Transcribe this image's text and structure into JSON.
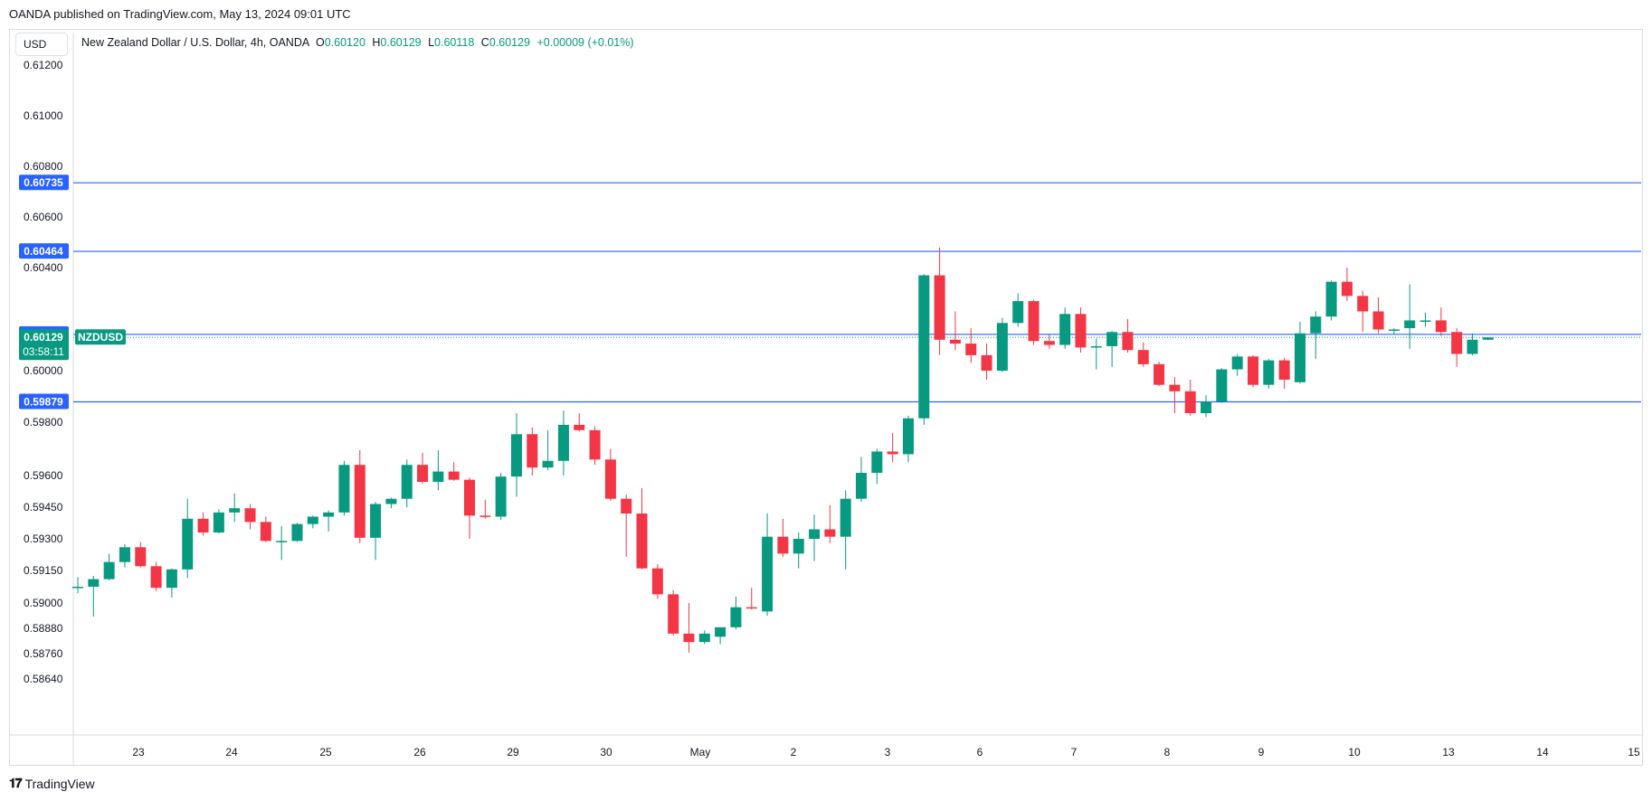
{
  "header": {
    "published": "OANDA published on TradingView.com, May 13, 2024 09:01 UTC"
  },
  "currency_button": "USD",
  "legend": {
    "instrument": "New Zealand Dollar / U.S. Dollar, 4h, OANDA",
    "o_label": "O",
    "o_val": "0.60120",
    "h_label": "H",
    "h_val": "0.60129",
    "l_label": "L",
    "l_val": "0.60118",
    "c_label": "C",
    "c_val": "0.60129",
    "change": "+0.00009 (+0.01%)"
  },
  "footer": {
    "brand": "TradingView"
  },
  "colors": {
    "up": "#089981",
    "down": "#f23645",
    "level": "#2962ff",
    "grid": "#e0e3eb"
  },
  "chart_data": {
    "type": "candlestick",
    "symbol": "NZDUSD",
    "y_axis": {
      "ticks": [
        "0.61200",
        "0.61000",
        "0.60800",
        "0.60600",
        "0.60400",
        "0.60000",
        "0.59800",
        "0.59600",
        "0.59450",
        "0.59300",
        "0.59150",
        "0.59000",
        "0.58880",
        "0.58760",
        "0.58640"
      ],
      "tick_values": [
        0.612,
        0.61,
        0.608,
        0.606,
        0.604,
        0.6,
        0.598,
        0.596,
        0.5945,
        0.593,
        0.5915,
        0.59,
        0.5888,
        0.5876,
        0.5864
      ]
    },
    "x_axis": {
      "labels": [
        "23",
        "24",
        "25",
        "26",
        "29",
        "30",
        "May",
        "2",
        "3",
        "6",
        "7",
        "8",
        "9",
        "10",
        "13",
        "14",
        "15"
      ]
    },
    "levels": [
      {
        "label": "0.60735",
        "value": 0.60735
      },
      {
        "label": "0.60464",
        "value": 0.60464
      },
      {
        "label": "0.60141",
        "value": 0.60141
      },
      {
        "label": "0.59879",
        "value": 0.59879
      }
    ],
    "current": {
      "label": "0.60129",
      "countdown": "03:58:11",
      "value": 0.60129,
      "symbol_tag": "NZDUSD"
    },
    "candles": [
      {
        "o": 0.5907,
        "h": 0.5912,
        "l": 0.59045,
        "c": 0.59075
      },
      {
        "o": 0.59075,
        "h": 0.59125,
        "l": 0.58935,
        "c": 0.5911
      },
      {
        "o": 0.5911,
        "h": 0.5923,
        "l": 0.59105,
        "c": 0.5919
      },
      {
        "o": 0.5919,
        "h": 0.59275,
        "l": 0.59165,
        "c": 0.5926
      },
      {
        "o": 0.5926,
        "h": 0.59285,
        "l": 0.59165,
        "c": 0.5917
      },
      {
        "o": 0.5917,
        "h": 0.5919,
        "l": 0.59055,
        "c": 0.5907
      },
      {
        "o": 0.5907,
        "h": 0.5916,
        "l": 0.59025,
        "c": 0.59155
      },
      {
        "o": 0.59155,
        "h": 0.5949,
        "l": 0.59115,
        "c": 0.59395
      },
      {
        "o": 0.59395,
        "h": 0.59425,
        "l": 0.59315,
        "c": 0.5933
      },
      {
        "o": 0.5933,
        "h": 0.5944,
        "l": 0.59325,
        "c": 0.59425
      },
      {
        "o": 0.59425,
        "h": 0.59515,
        "l": 0.5938,
        "c": 0.59445
      },
      {
        "o": 0.59445,
        "h": 0.59465,
        "l": 0.59345,
        "c": 0.5938
      },
      {
        "o": 0.5938,
        "h": 0.59405,
        "l": 0.59285,
        "c": 0.5929
      },
      {
        "o": 0.5929,
        "h": 0.5936,
        "l": 0.592,
        "c": 0.5929
      },
      {
        "o": 0.5929,
        "h": 0.59375,
        "l": 0.59285,
        "c": 0.5937
      },
      {
        "o": 0.5937,
        "h": 0.5941,
        "l": 0.5935,
        "c": 0.59405
      },
      {
        "o": 0.59405,
        "h": 0.59435,
        "l": 0.59335,
        "c": 0.59425
      },
      {
        "o": 0.59425,
        "h": 0.59655,
        "l": 0.5941,
        "c": 0.5964
      },
      {
        "o": 0.5964,
        "h": 0.59695,
        "l": 0.5928,
        "c": 0.59305
      },
      {
        "o": 0.59305,
        "h": 0.59475,
        "l": 0.592,
        "c": 0.59465
      },
      {
        "o": 0.59465,
        "h": 0.59495,
        "l": 0.59445,
        "c": 0.5949
      },
      {
        "o": 0.5949,
        "h": 0.5966,
        "l": 0.5945,
        "c": 0.5964
      },
      {
        "o": 0.5964,
        "h": 0.59685,
        "l": 0.5956,
        "c": 0.5957
      },
      {
        "o": 0.5957,
        "h": 0.59695,
        "l": 0.5953,
        "c": 0.59615
      },
      {
        "o": 0.59615,
        "h": 0.5965,
        "l": 0.59575,
        "c": 0.5958
      },
      {
        "o": 0.5958,
        "h": 0.5959,
        "l": 0.593,
        "c": 0.5941
      },
      {
        "o": 0.5941,
        "h": 0.59485,
        "l": 0.59395,
        "c": 0.59405
      },
      {
        "o": 0.59405,
        "h": 0.5961,
        "l": 0.5939,
        "c": 0.59595
      },
      {
        "o": 0.59595,
        "h": 0.59835,
        "l": 0.595,
        "c": 0.59755
      },
      {
        "o": 0.59755,
        "h": 0.5978,
        "l": 0.596,
        "c": 0.5963
      },
      {
        "o": 0.5963,
        "h": 0.5977,
        "l": 0.5962,
        "c": 0.59655
      },
      {
        "o": 0.59655,
        "h": 0.59845,
        "l": 0.596,
        "c": 0.5979
      },
      {
        "o": 0.5979,
        "h": 0.59835,
        "l": 0.59765,
        "c": 0.5977
      },
      {
        "o": 0.5977,
        "h": 0.59785,
        "l": 0.5964,
        "c": 0.5966
      },
      {
        "o": 0.5966,
        "h": 0.597,
        "l": 0.5948,
        "c": 0.5949
      },
      {
        "o": 0.5949,
        "h": 0.5951,
        "l": 0.59215,
        "c": 0.5942
      },
      {
        "o": 0.5942,
        "h": 0.5954,
        "l": 0.59155,
        "c": 0.5916
      },
      {
        "o": 0.5916,
        "h": 0.5918,
        "l": 0.5902,
        "c": 0.5904
      },
      {
        "o": 0.5904,
        "h": 0.5906,
        "l": 0.58845,
        "c": 0.58855
      },
      {
        "o": 0.58855,
        "h": 0.59,
        "l": 0.58765,
        "c": 0.58815
      },
      {
        "o": 0.58815,
        "h": 0.5887,
        "l": 0.58805,
        "c": 0.58855
      },
      {
        "o": 0.5884,
        "h": 0.58885,
        "l": 0.58805,
        "c": 0.58885
      },
      {
        "o": 0.58885,
        "h": 0.5903,
        "l": 0.58875,
        "c": 0.5898
      },
      {
        "o": 0.5898,
        "h": 0.5907,
        "l": 0.5897,
        "c": 0.58975
      },
      {
        "o": 0.5896,
        "h": 0.5942,
        "l": 0.5894,
        "c": 0.5931
      },
      {
        "o": 0.5931,
        "h": 0.59395,
        "l": 0.59215,
        "c": 0.5923
      },
      {
        "o": 0.5923,
        "h": 0.5933,
        "l": 0.5916,
        "c": 0.593
      },
      {
        "o": 0.593,
        "h": 0.59415,
        "l": 0.59195,
        "c": 0.59345
      },
      {
        "o": 0.59345,
        "h": 0.5946,
        "l": 0.5928,
        "c": 0.5931
      },
      {
        "o": 0.5931,
        "h": 0.5953,
        "l": 0.59155,
        "c": 0.5949
      },
      {
        "o": 0.5949,
        "h": 0.5967,
        "l": 0.59475,
        "c": 0.5961
      },
      {
        "o": 0.5961,
        "h": 0.597,
        "l": 0.5956,
        "c": 0.5969
      },
      {
        "o": 0.5969,
        "h": 0.5976,
        "l": 0.5965,
        "c": 0.5968
      },
      {
        "o": 0.5968,
        "h": 0.59825,
        "l": 0.5965,
        "c": 0.59815
      },
      {
        "o": 0.59815,
        "h": 0.60375,
        "l": 0.5979,
        "c": 0.6037
      },
      {
        "o": 0.6037,
        "h": 0.6048,
        "l": 0.6006,
        "c": 0.6012
      },
      {
        "o": 0.6012,
        "h": 0.6023,
        "l": 0.6008,
        "c": 0.60105
      },
      {
        "o": 0.60105,
        "h": 0.60165,
        "l": 0.6003,
        "c": 0.6006
      },
      {
        "o": 0.6006,
        "h": 0.60105,
        "l": 0.59965,
        "c": 0.6
      },
      {
        "o": 0.6,
        "h": 0.60205,
        "l": 0.59995,
        "c": 0.60185
      },
      {
        "o": 0.60185,
        "h": 0.603,
        "l": 0.6017,
        "c": 0.6027
      },
      {
        "o": 0.6027,
        "h": 0.60275,
        "l": 0.601,
        "c": 0.60115
      },
      {
        "o": 0.60115,
        "h": 0.6014,
        "l": 0.60085,
        "c": 0.601
      },
      {
        "o": 0.601,
        "h": 0.60245,
        "l": 0.60085,
        "c": 0.6022
      },
      {
        "o": 0.6022,
        "h": 0.60245,
        "l": 0.6007,
        "c": 0.6009
      },
      {
        "o": 0.6009,
        "h": 0.60125,
        "l": 0.60005,
        "c": 0.60095
      },
      {
        "o": 0.60095,
        "h": 0.60155,
        "l": 0.60015,
        "c": 0.6015
      },
      {
        "o": 0.6015,
        "h": 0.602,
        "l": 0.6007,
        "c": 0.6008
      },
      {
        "o": 0.6008,
        "h": 0.6011,
        "l": 0.60015,
        "c": 0.60025
      },
      {
        "o": 0.60025,
        "h": 0.60035,
        "l": 0.5994,
        "c": 0.59945
      },
      {
        "o": 0.59945,
        "h": 0.59975,
        "l": 0.59835,
        "c": 0.5992
      },
      {
        "o": 0.5992,
        "h": 0.59965,
        "l": 0.59825,
        "c": 0.59835
      },
      {
        "o": 0.59835,
        "h": 0.59905,
        "l": 0.5982,
        "c": 0.5988
      },
      {
        "o": 0.5988,
        "h": 0.6001,
        "l": 0.59875,
        "c": 0.60005
      },
      {
        "o": 0.60005,
        "h": 0.60065,
        "l": 0.5998,
        "c": 0.60055
      },
      {
        "o": 0.60055,
        "h": 0.6006,
        "l": 0.59935,
        "c": 0.59945
      },
      {
        "o": 0.59945,
        "h": 0.60045,
        "l": 0.5993,
        "c": 0.6004
      },
      {
        "o": 0.6004,
        "h": 0.6005,
        "l": 0.5993,
        "c": 0.59965
      },
      {
        "o": 0.59955,
        "h": 0.6019,
        "l": 0.5995,
        "c": 0.60145
      },
      {
        "o": 0.60145,
        "h": 0.6023,
        "l": 0.60045,
        "c": 0.6021
      },
      {
        "o": 0.6021,
        "h": 0.6035,
        "l": 0.60195,
        "c": 0.60345
      },
      {
        "o": 0.60345,
        "h": 0.604,
        "l": 0.6027,
        "c": 0.6029
      },
      {
        "o": 0.6029,
        "h": 0.6031,
        "l": 0.6015,
        "c": 0.6023
      },
      {
        "o": 0.6023,
        "h": 0.60285,
        "l": 0.60145,
        "c": 0.6016
      },
      {
        "o": 0.6016,
        "h": 0.60165,
        "l": 0.6014,
        "c": 0.6016
      },
      {
        "o": 0.60165,
        "h": 0.60335,
        "l": 0.60085,
        "c": 0.60195
      },
      {
        "o": 0.60195,
        "h": 0.60225,
        "l": 0.6017,
        "c": 0.60195
      },
      {
        "o": 0.60195,
        "h": 0.60245,
        "l": 0.60135,
        "c": 0.6015
      },
      {
        "o": 0.6015,
        "h": 0.60165,
        "l": 0.60015,
        "c": 0.60065
      },
      {
        "o": 0.60065,
        "h": 0.60145,
        "l": 0.6006,
        "c": 0.6012
      },
      {
        "o": 0.6012,
        "h": 0.60129,
        "l": 0.60118,
        "c": 0.60129
      }
    ]
  }
}
